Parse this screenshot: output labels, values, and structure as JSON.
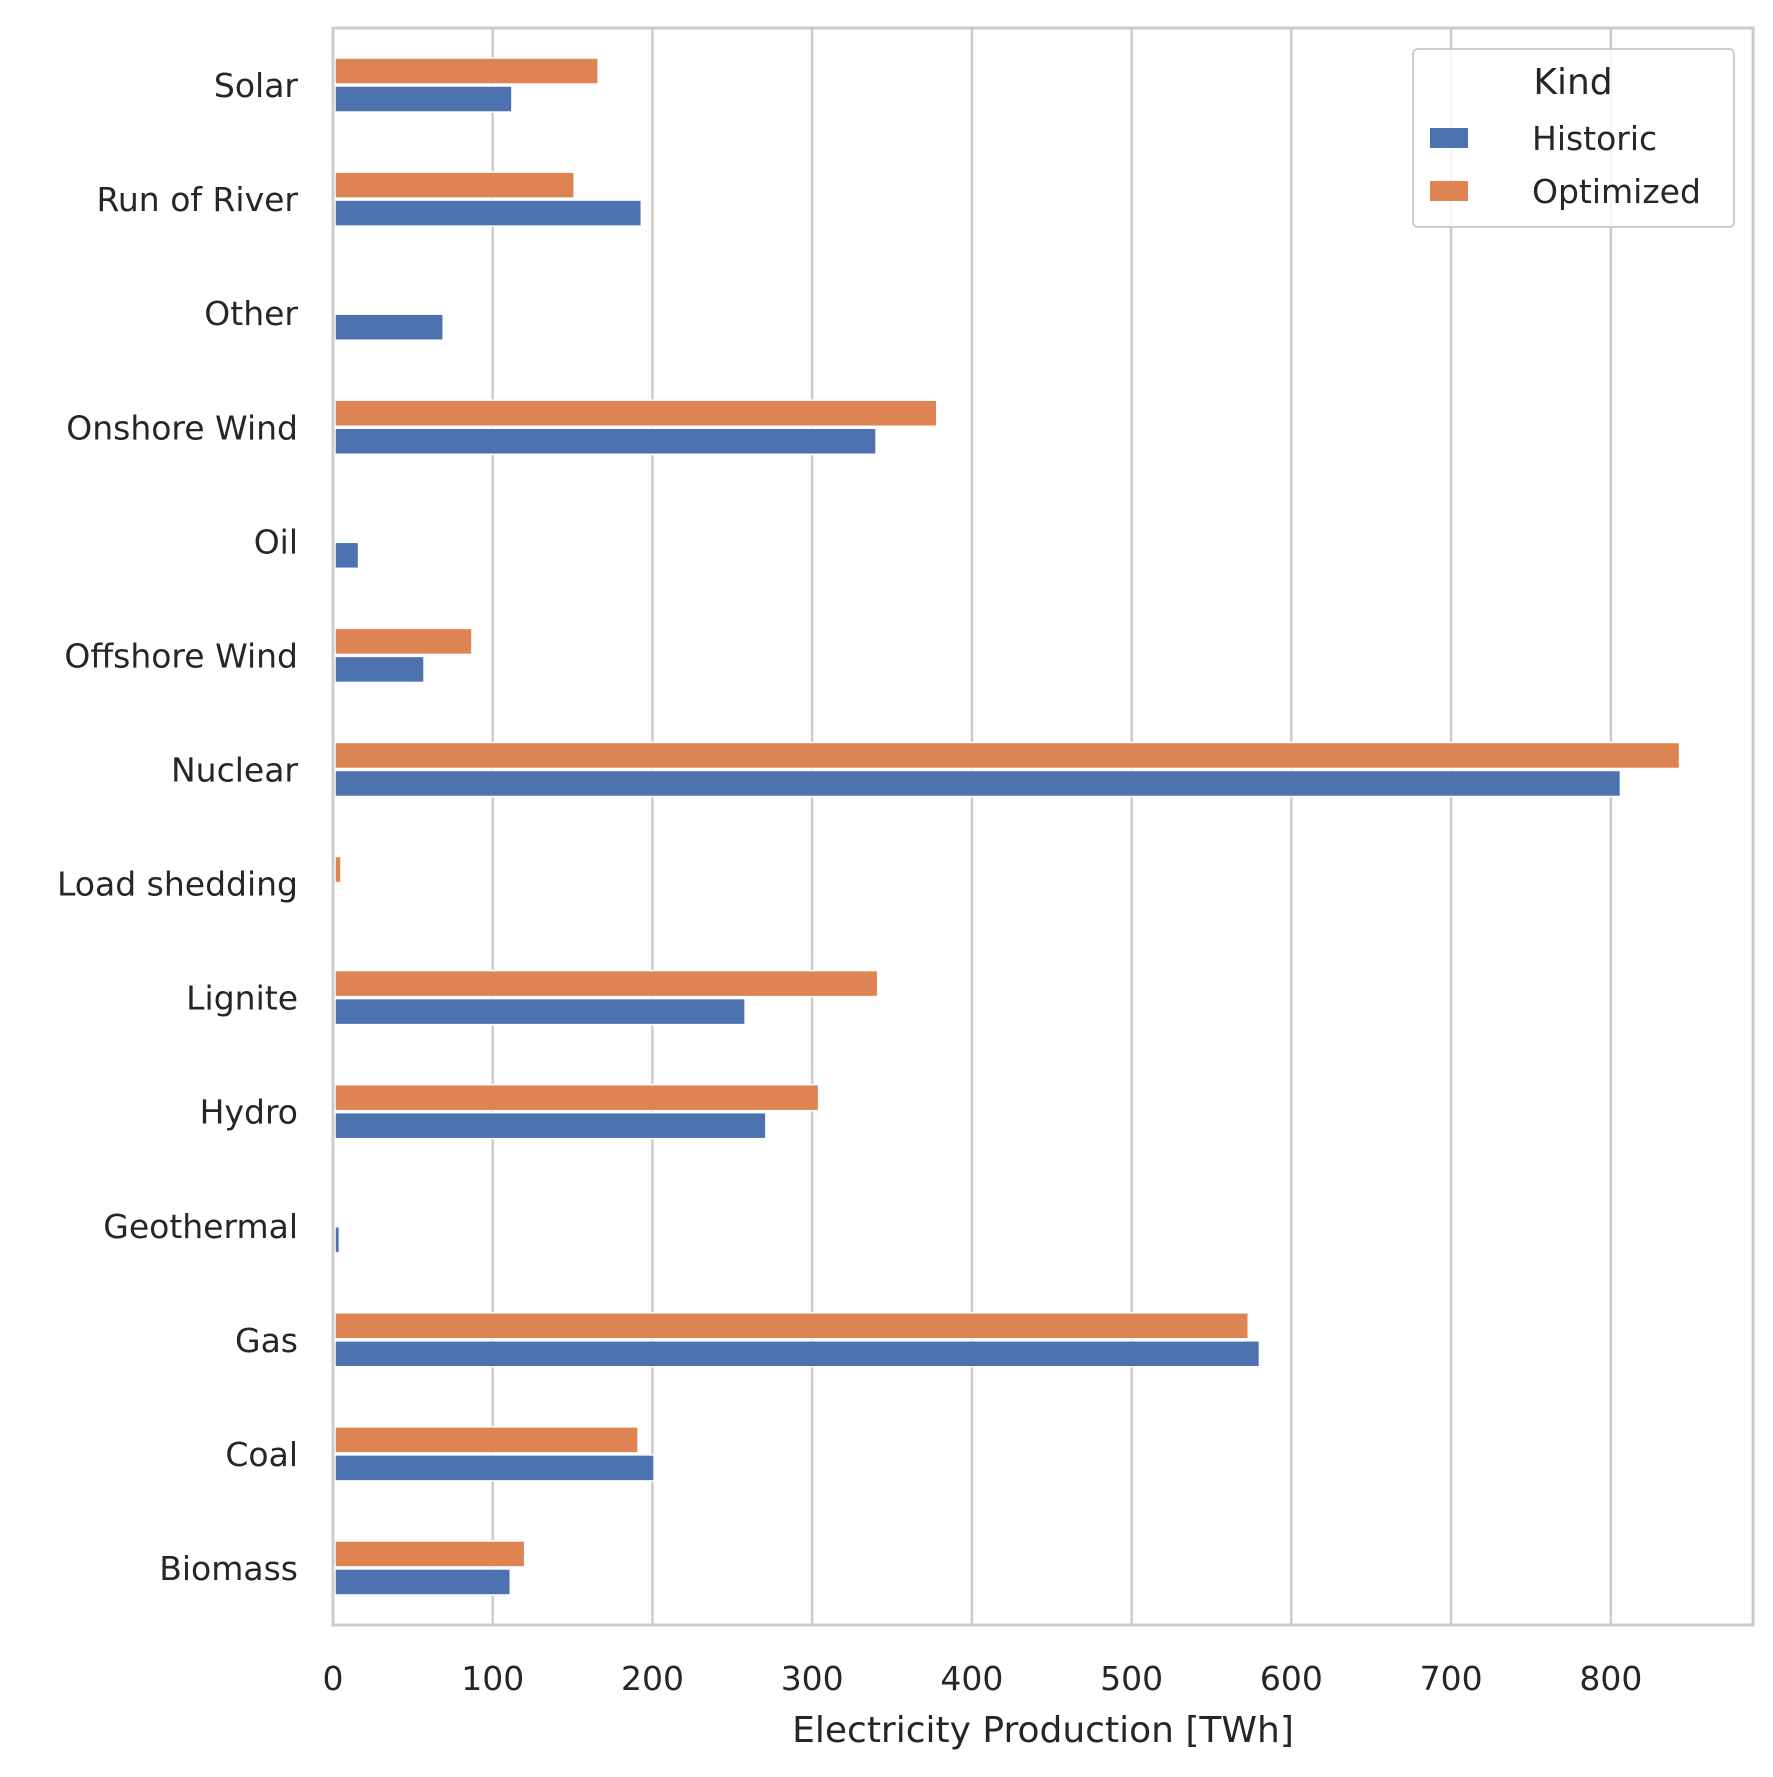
{
  "chart_data": {
    "type": "bar",
    "orientation": "horizontal",
    "title": "",
    "xlabel": "Electricity Production [TWh]",
    "ylabel": "",
    "xlim": [
      0,
      889
    ],
    "xticks": [
      0,
      100,
      200,
      300,
      400,
      500,
      600,
      700,
      800
    ],
    "grid": true,
    "categories": [
      "Solar",
      "Run of River",
      "Other",
      "Onshore Wind",
      "Oil",
      "Offshore Wind",
      "Nuclear",
      "Load shedding",
      "Lignite",
      "Hydro",
      "Geothermal",
      "Gas",
      "Coal",
      "Biomass"
    ],
    "series": [
      {
        "name": "Historic",
        "color": "#4c72b0",
        "values": [
          112,
          193,
          69,
          340,
          16,
          57,
          806,
          0,
          258,
          271,
          4,
          580,
          201,
          111
        ]
      },
      {
        "name": "Optimized",
        "color": "#dd8452",
        "values": [
          166,
          151,
          0,
          378,
          0,
          87,
          843,
          5,
          341,
          304,
          0,
          573,
          191,
          120
        ]
      }
    ],
    "legend": {
      "title": "Kind",
      "placement": "top-right"
    }
  }
}
